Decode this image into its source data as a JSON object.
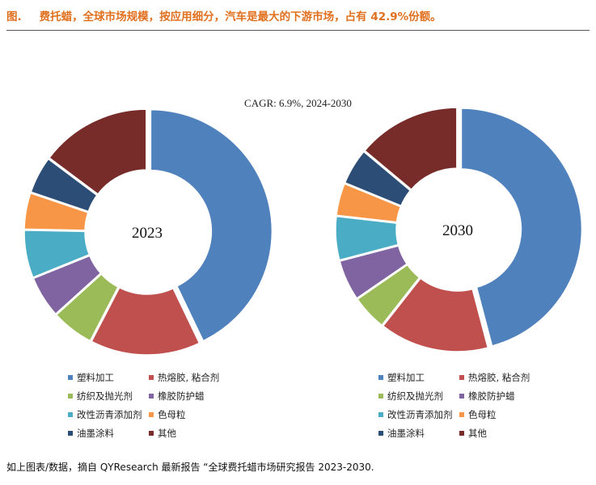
{
  "header": {
    "prefix": "图.",
    "title": "费托蜡，全球市场规模，按应用细分，汽车是最大的下游市场，占有 42.9%份额。"
  },
  "footer": {
    "source": "如上图表/数据，摘自 QYResearch 最新报告 “全球费托蜡市场研究报告 2023-2030."
  },
  "chart_data": {
    "type": "pie",
    "subtitle": "CAGR: 6.9%, 2024-2030",
    "categories": [
      "塑料加工",
      "热熔胶, 粘合剂",
      "纺织及抛光剂",
      "橡胶防护蜡",
      "改性沥青添加剂",
      "色母粒",
      "油墨涂料",
      "其他"
    ],
    "colors": [
      "#4f81bd",
      "#c0504d",
      "#9bbb59",
      "#8064a2",
      "#4bacc6",
      "#f79646",
      "#2c4d75",
      "#772c2a"
    ],
    "series": [
      {
        "name": "2023",
        "values": [
          42.9,
          14.7,
          5.7,
          5.6,
          6.4,
          4.9,
          5.0,
          14.8
        ]
      },
      {
        "name": "2030",
        "values": [
          45.9,
          14.7,
          4.8,
          5.5,
          5.9,
          4.4,
          4.9,
          13.9
        ]
      }
    ],
    "legend_placement": "bottom"
  }
}
